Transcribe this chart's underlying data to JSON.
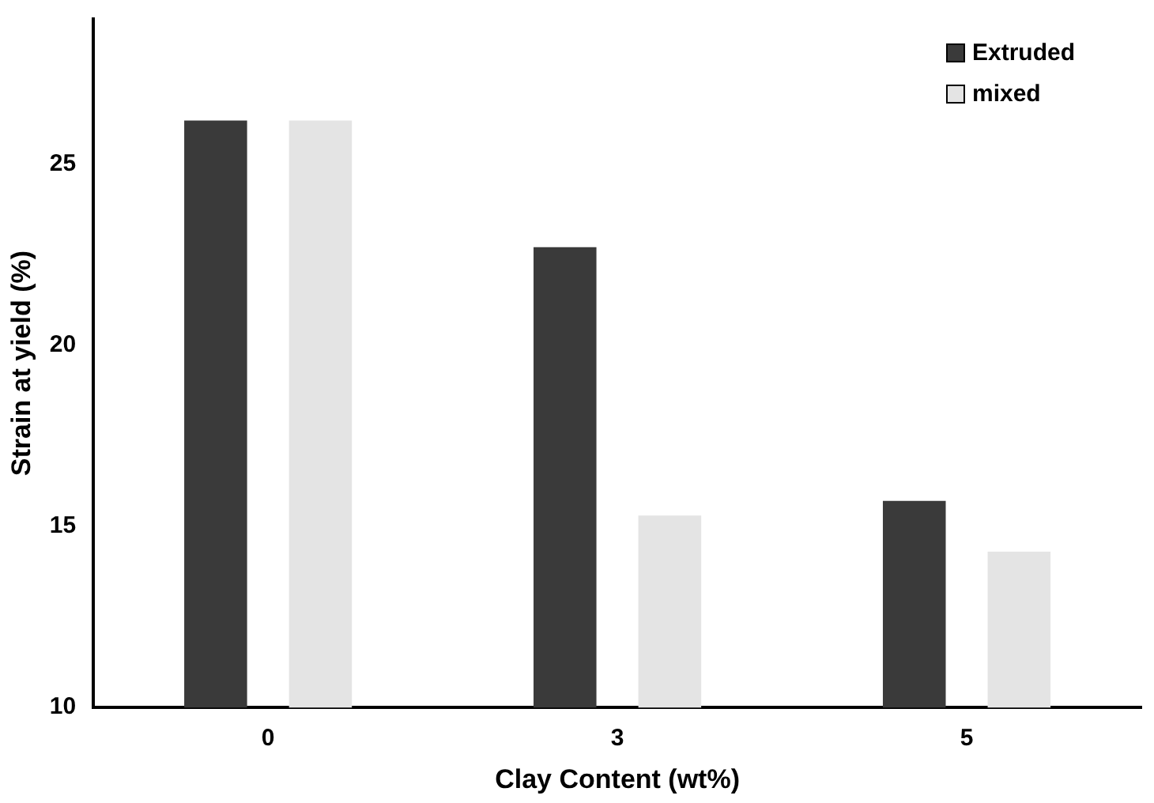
{
  "chart_data": {
    "type": "bar",
    "xlabel": "Clay Content (wt%)",
    "ylabel": "Strain at yield (%)",
    "categories": [
      "0",
      "3",
      "5"
    ],
    "series": [
      {
        "name": "Extruded",
        "color": "#3a3a3a",
        "values": [
          26.2,
          22.7,
          15.7
        ]
      },
      {
        "name": "mixed",
        "color": "#e4e4e4",
        "values": [
          26.2,
          15.3,
          14.3
        ]
      }
    ],
    "ylim": [
      10,
      29
    ],
    "yticks": [
      10,
      15,
      20,
      25
    ],
    "grid": false,
    "legend": "top right"
  }
}
